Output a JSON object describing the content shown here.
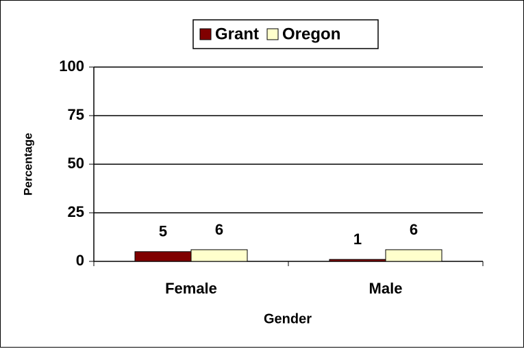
{
  "chart_data": {
    "type": "bar",
    "x_label": "Gender",
    "y_label": "Percentage",
    "categories": [
      "Female",
      "Male"
    ],
    "series": [
      {
        "name": "Grant",
        "color": "#800000",
        "values": [
          5,
          1
        ]
      },
      {
        "name": "Oregon",
        "color": "#ffffcc",
        "values": [
          6,
          6
        ]
      }
    ],
    "ylim": [
      0,
      100
    ],
    "yticks": [
      0,
      25,
      50,
      75,
      100
    ],
    "grid": true,
    "legend": "top"
  }
}
